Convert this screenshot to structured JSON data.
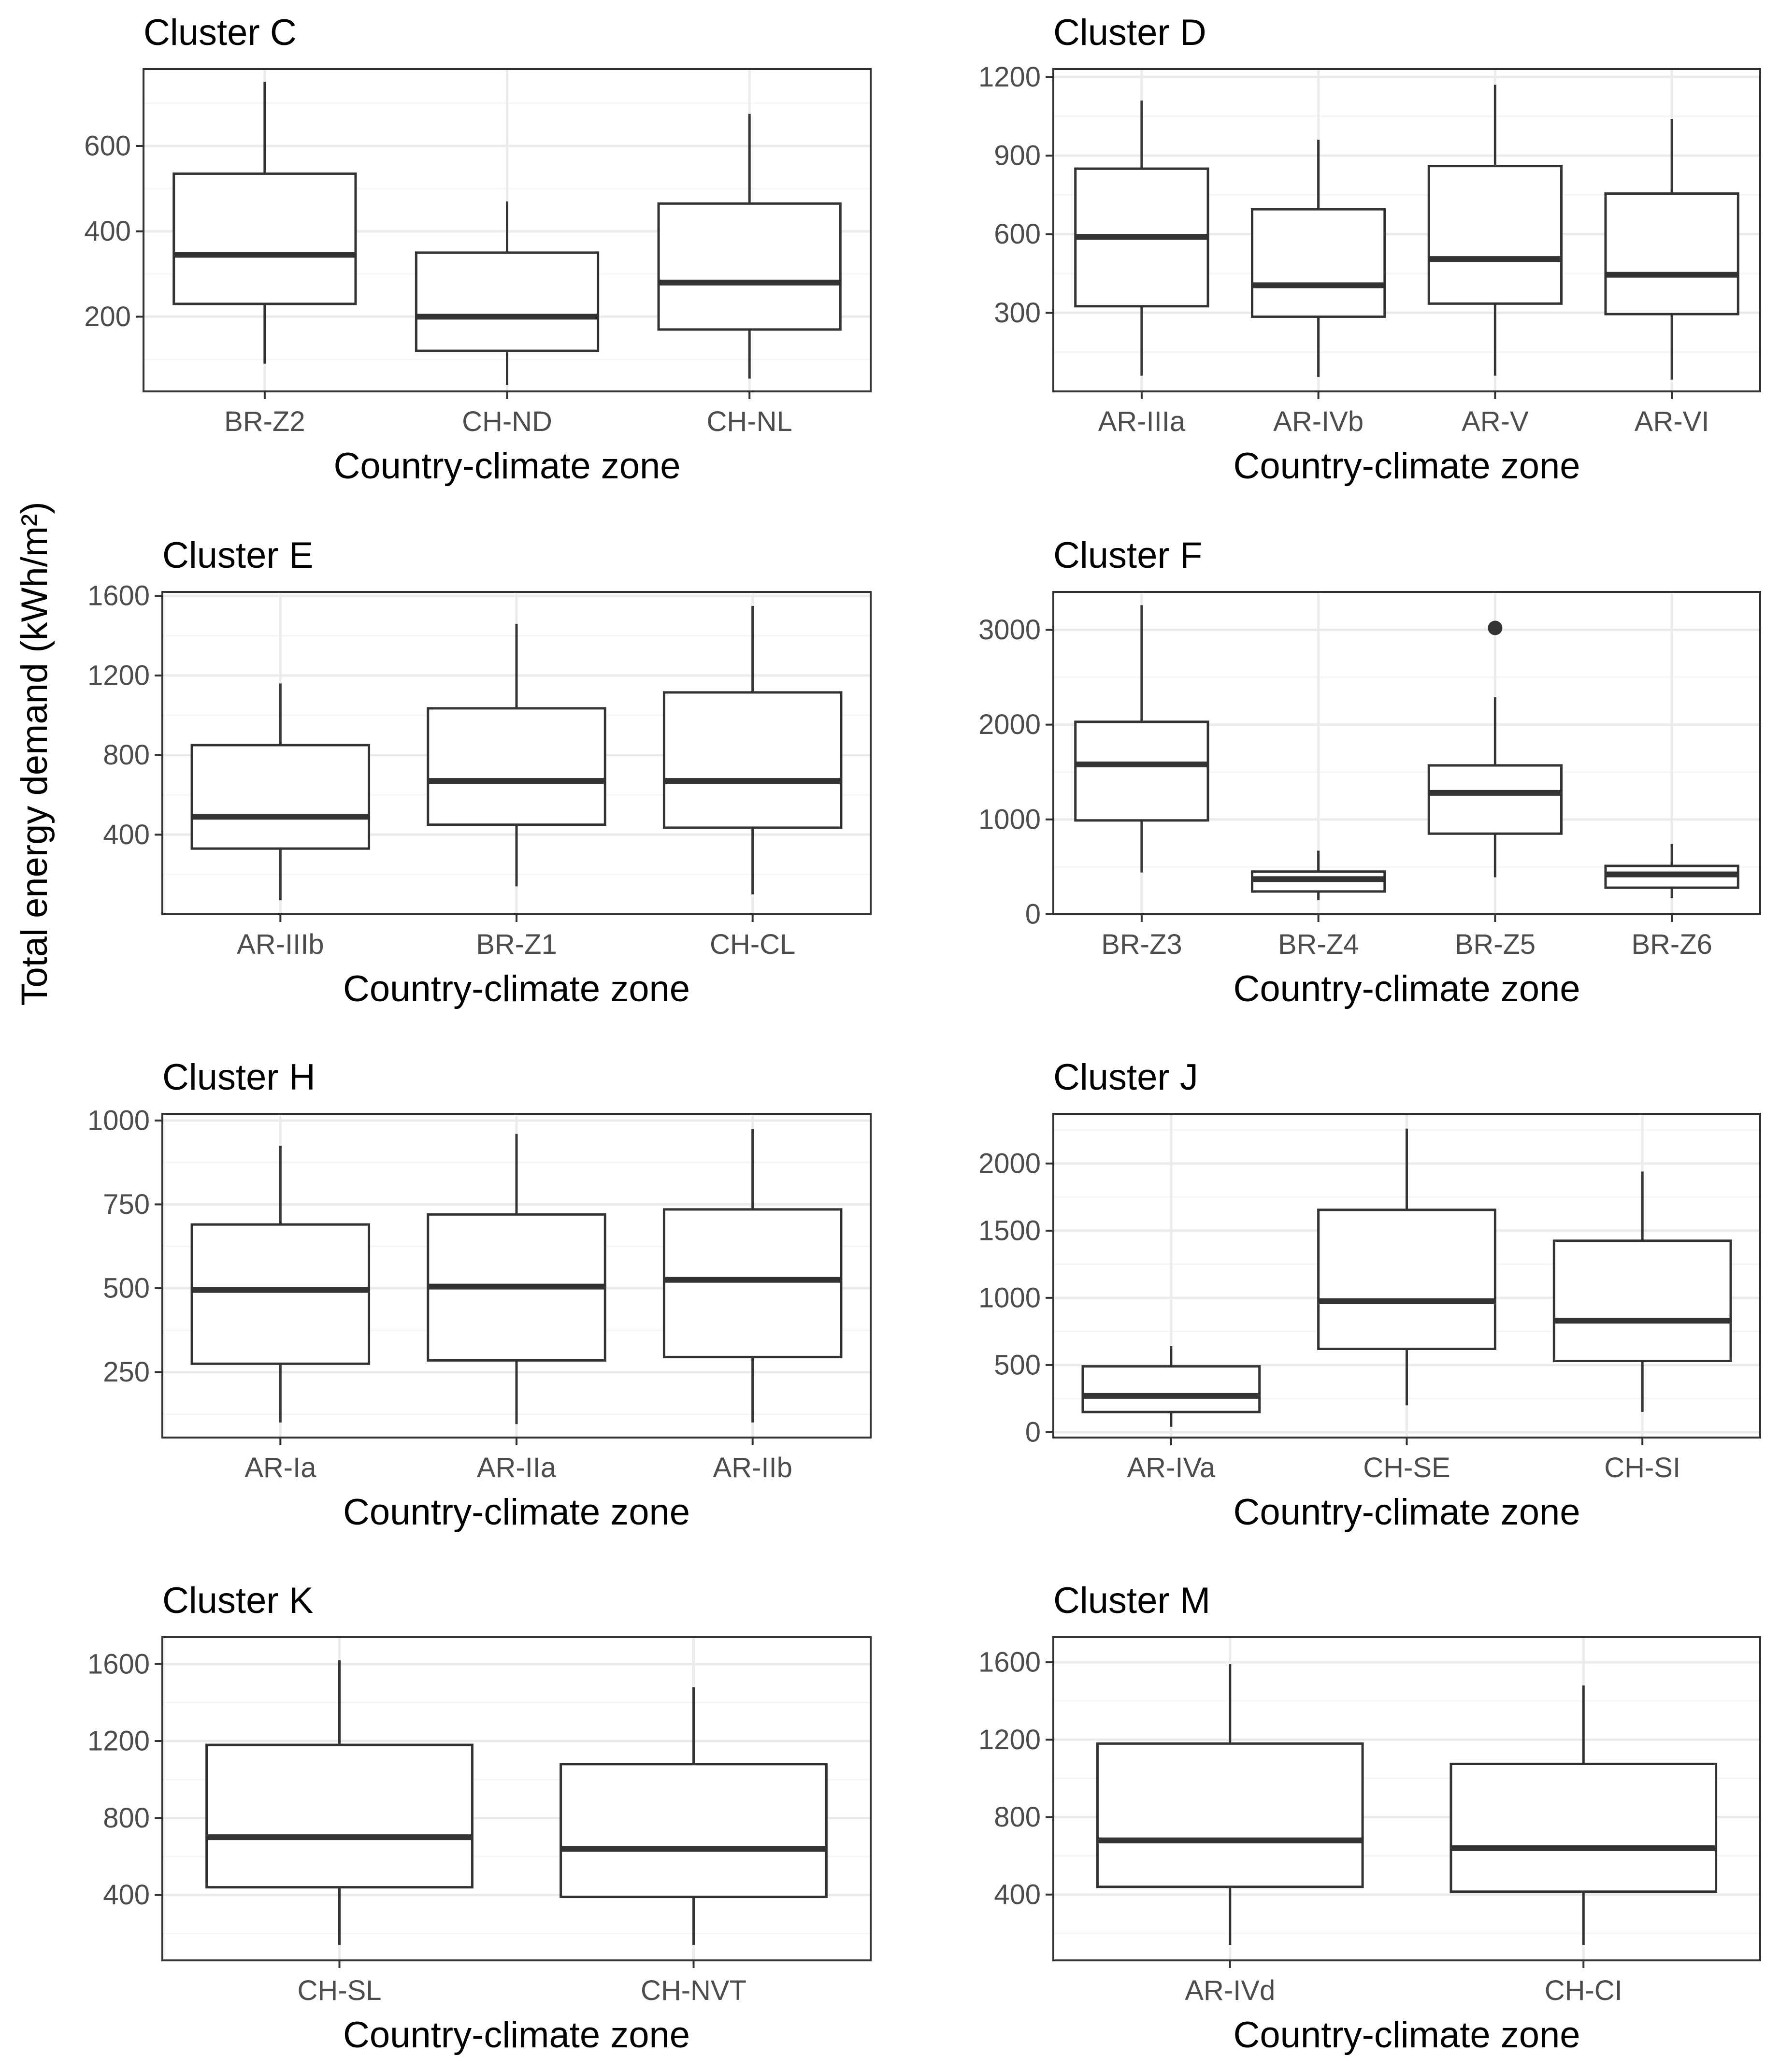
{
  "figure": {
    "ylabel": "Total energy demand (kWh/m²)",
    "colors": {
      "box": "#333333",
      "grid_major": "#ebebeb",
      "grid_minor": "#f5f5f5",
      "panel_border": "#333333",
      "axis_text": "#4d4d4d",
      "title_text": "#000000",
      "outlier": "#333333"
    }
  },
  "chart_data": [
    {
      "type": "box",
      "title": "Cluster C",
      "xlabel": "Country-climate zone",
      "ylabel": "Total energy demand (kWh/m²)",
      "ylim": [
        25,
        780
      ],
      "yticks": [
        200,
        400,
        600
      ],
      "yticklabels": [
        "200",
        "400",
        "600"
      ],
      "categories": [
        "BR-Z2",
        "CH-ND",
        "CH-NL"
      ],
      "boxes": [
        {
          "min": 90,
          "q1": 230,
          "median": 345,
          "q3": 535,
          "max": 750
        },
        {
          "min": 40,
          "q1": 120,
          "median": 200,
          "q3": 350,
          "max": 470
        },
        {
          "min": 55,
          "q1": 170,
          "median": 280,
          "q3": 465,
          "max": 675
        }
      ],
      "outliers": []
    },
    {
      "type": "box",
      "title": "Cluster D",
      "xlabel": "Country-climate zone",
      "ylabel": "Total energy demand (kWh/m²)",
      "ylim": [
        0,
        1230
      ],
      "yticks": [
        300,
        600,
        900,
        1200
      ],
      "yticklabels": [
        "300",
        "600",
        "900",
        "1200"
      ],
      "categories": [
        "AR-IIIa",
        "AR-IVb",
        "AR-V",
        "AR-VI"
      ],
      "boxes": [
        {
          "min": 60,
          "q1": 325,
          "median": 590,
          "q3": 850,
          "max": 1110
        },
        {
          "min": 55,
          "q1": 285,
          "median": 405,
          "q3": 695,
          "max": 960
        },
        {
          "min": 60,
          "q1": 335,
          "median": 505,
          "q3": 860,
          "max": 1170
        },
        {
          "min": 45,
          "q1": 295,
          "median": 445,
          "q3": 755,
          "max": 1040
        }
      ],
      "outliers": []
    },
    {
      "type": "box",
      "title": "Cluster E",
      "xlabel": "Country-climate zone",
      "ylabel": "Total energy demand (kWh/m²)",
      "ylim": [
        0,
        1620
      ],
      "yticks": [
        400,
        800,
        1200,
        1600
      ],
      "yticklabels": [
        "400",
        "800",
        "1200",
        "1600"
      ],
      "categories": [
        "AR-IIIb",
        "BR-Z1",
        "CH-CL"
      ],
      "boxes": [
        {
          "min": 70,
          "q1": 330,
          "median": 490,
          "q3": 850,
          "max": 1160
        },
        {
          "min": 140,
          "q1": 450,
          "median": 670,
          "q3": 1035,
          "max": 1460
        },
        {
          "min": 100,
          "q1": 435,
          "median": 670,
          "q3": 1115,
          "max": 1550
        }
      ],
      "outliers": []
    },
    {
      "type": "box",
      "title": "Cluster F",
      "xlabel": "Country-climate zone",
      "ylabel": "Total energy demand (kWh/m²)",
      "ylim": [
        0,
        3400
      ],
      "yticks": [
        0,
        1000,
        2000,
        3000
      ],
      "yticklabels": [
        "0",
        "1000",
        "2000",
        "3000"
      ],
      "categories": [
        "BR-Z3",
        "BR-Z4",
        "BR-Z5",
        "BR-Z6"
      ],
      "boxes": [
        {
          "min": 440,
          "q1": 990,
          "median": 1580,
          "q3": 2030,
          "max": 3260
        },
        {
          "min": 150,
          "q1": 240,
          "median": 370,
          "q3": 450,
          "max": 670
        },
        {
          "min": 390,
          "q1": 850,
          "median": 1280,
          "q3": 1570,
          "max": 2290
        },
        {
          "min": 170,
          "q1": 280,
          "median": 420,
          "q3": 510,
          "max": 740
        }
      ],
      "outliers": [
        {
          "category": "BR-Z5",
          "value": 3020
        }
      ]
    },
    {
      "type": "box",
      "title": "Cluster H",
      "xlabel": "Country-climate zone",
      "ylabel": "Total energy demand (kWh/m²)",
      "ylim": [
        55,
        1020
      ],
      "yticks": [
        250,
        500,
        750,
        1000
      ],
      "yticklabels": [
        "250",
        "500",
        "750",
        "1000"
      ],
      "categories": [
        "AR-Ia",
        "AR-IIa",
        "AR-IIb"
      ],
      "boxes": [
        {
          "min": 100,
          "q1": 275,
          "median": 495,
          "q3": 690,
          "max": 925
        },
        {
          "min": 95,
          "q1": 285,
          "median": 505,
          "q3": 720,
          "max": 960
        },
        {
          "min": 100,
          "q1": 295,
          "median": 525,
          "q3": 735,
          "max": 975
        }
      ],
      "outliers": []
    },
    {
      "type": "box",
      "title": "Cluster J",
      "xlabel": "Country-climate zone",
      "ylabel": "Total energy demand (kWh/m²)",
      "ylim": [
        -40,
        2370
      ],
      "yticks": [
        0,
        500,
        1000,
        1500,
        2000
      ],
      "yticklabels": [
        "0",
        "500",
        "1000",
        "1500",
        "2000"
      ],
      "categories": [
        "AR-IVa",
        "CH-SE",
        "CH-SI"
      ],
      "boxes": [
        {
          "min": 40,
          "q1": 150,
          "median": 270,
          "q3": 490,
          "max": 640
        },
        {
          "min": 200,
          "q1": 620,
          "median": 975,
          "q3": 1655,
          "max": 2260
        },
        {
          "min": 150,
          "q1": 530,
          "median": 830,
          "q3": 1425,
          "max": 1940
        }
      ],
      "outliers": []
    },
    {
      "type": "box",
      "title": "Cluster K",
      "xlabel": "Country-climate zone",
      "ylabel": "Total energy demand (kWh/m²)",
      "ylim": [
        60,
        1740
      ],
      "yticks": [
        400,
        800,
        1200,
        1600
      ],
      "yticklabels": [
        "400",
        "800",
        "1200",
        "1600"
      ],
      "categories": [
        "CH-SL",
        "CH-NVT"
      ],
      "boxes": [
        {
          "min": 140,
          "q1": 440,
          "median": 700,
          "q3": 1180,
          "max": 1620
        },
        {
          "min": 140,
          "q1": 390,
          "median": 640,
          "q3": 1080,
          "max": 1480
        }
      ],
      "outliers": []
    },
    {
      "type": "box",
      "title": "Cluster M",
      "xlabel": "Country-climate zone",
      "ylabel": "Total energy demand (kWh/m²)",
      "ylim": [
        60,
        1730
      ],
      "yticks": [
        400,
        800,
        1200,
        1600
      ],
      "yticklabels": [
        "400",
        "800",
        "1200",
        "1600"
      ],
      "categories": [
        "AR-IVd",
        "CH-CI"
      ],
      "boxes": [
        {
          "min": 140,
          "q1": 440,
          "median": 680,
          "q3": 1180,
          "max": 1590
        },
        {
          "min": 140,
          "q1": 415,
          "median": 640,
          "q3": 1075,
          "max": 1480
        }
      ],
      "outliers": []
    }
  ]
}
